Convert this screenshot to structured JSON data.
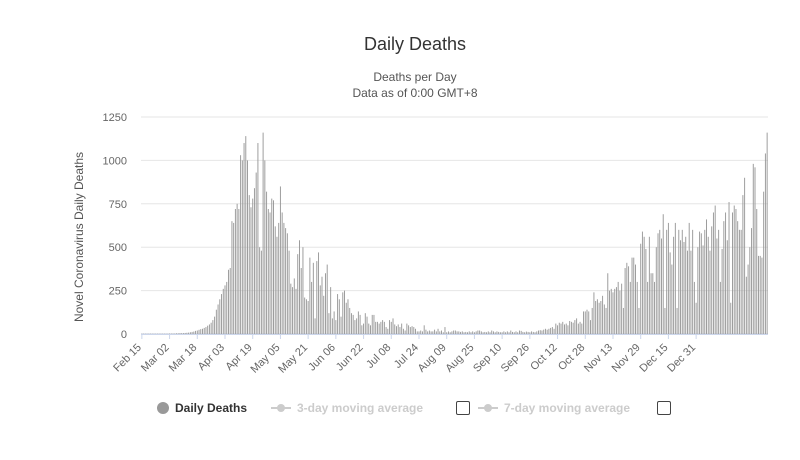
{
  "chart_data": {
    "type": "bar",
    "title": "Daily Deaths",
    "subtitle": [
      "Deaths per Day",
      "Data as of 0:00 GMT+8"
    ],
    "ylabel": "Novel Coronavirus Daily Deaths",
    "xlabel": "",
    "ylim": [
      0,
      1250
    ],
    "yticks": [
      0,
      250,
      500,
      750,
      1000,
      1250
    ],
    "grid": true,
    "x_start": "Feb 15",
    "x_end": "Jan 06",
    "xtick_labels": [
      "Feb 15",
      "Mar 02",
      "Mar 18",
      "Apr 03",
      "Apr 19",
      "May 05",
      "May 21",
      "Jun 06",
      "Jun 22",
      "Jul 08",
      "Jul 24",
      "Aug 09",
      "Aug 25",
      "Sep 10",
      "Sep 26",
      "Oct 12",
      "Oct 28",
      "Nov 13",
      "Nov 29",
      "Dec 15",
      "Dec 31"
    ],
    "color": "#999999",
    "series": [
      {
        "name": "Daily Deaths",
        "values": [
          2,
          2,
          2,
          2,
          2,
          2,
          2,
          2,
          2,
          2,
          2,
          2,
          2,
          2,
          2,
          2,
          3,
          3,
          3,
          3,
          4,
          4,
          5,
          5,
          5,
          6,
          7,
          8,
          10,
          12,
          14,
          18,
          20,
          24,
          28,
          30,
          35,
          40,
          48,
          55,
          65,
          80,
          100,
          140,
          170,
          200,
          230,
          260,
          280,
          300,
          370,
          380,
          650,
          640,
          720,
          750,
          720,
          1030,
          1000,
          1100,
          1140,
          1000,
          800,
          730,
          780,
          840,
          930,
          1100,
          500,
          480,
          1160,
          1000,
          820,
          720,
          700,
          780,
          770,
          620,
          560,
          640,
          850,
          700,
          640,
          610,
          580,
          480,
          290,
          270,
          320,
          260,
          460,
          540,
          380,
          500,
          210,
          200,
          190,
          440,
          300,
          410,
          90,
          420,
          470,
          280,
          330,
          220,
          350,
          400,
          120,
          270,
          90,
          130,
          80,
          230,
          200,
          100,
          240,
          250,
          180,
          200,
          150,
          120,
          110,
          80,
          90,
          130,
          110,
          50,
          60,
          120,
          100,
          60,
          50,
          110,
          110,
          70,
          70,
          60,
          70,
          80,
          70,
          40,
          30,
          80,
          70,
          90,
          55,
          45,
          55,
          40,
          60,
          30,
          20,
          60,
          50,
          40,
          45,
          40,
          30,
          15,
          15,
          20,
          15,
          50,
          25,
          15,
          20,
          15,
          15,
          25,
          15,
          30,
          15,
          20,
          10,
          40,
          10,
          15,
          10,
          15,
          20,
          20,
          15,
          15,
          12,
          15,
          10,
          12,
          10,
          15,
          10,
          15,
          10,
          15,
          20,
          20,
          15,
          10,
          12,
          10,
          15,
          10,
          20,
          15,
          10,
          15,
          12,
          10,
          10,
          15,
          10,
          15,
          10,
          20,
          12,
          10,
          15,
          10,
          20,
          18,
          12,
          10,
          14,
          12,
          10,
          15,
          12,
          10,
          15,
          20,
          22,
          20,
          25,
          30,
          25,
          30,
          35,
          40,
          30,
          60,
          50,
          65,
          60,
          70,
          55,
          60,
          50,
          75,
          70,
          65,
          80,
          90,
          60,
          70,
          60,
          130,
          130,
          140,
          130,
          80,
          150,
          240,
          190,
          200,
          180,
          190,
          220,
          170,
          150,
          350,
          250,
          260,
          240,
          260,
          270,
          300,
          250,
          290,
          150,
          380,
          410,
          390,
          300,
          440,
          440,
          400,
          300,
          150,
          520,
          590,
          560,
          490,
          300,
          560,
          350,
          350,
          300,
          500,
          580,
          600,
          550,
          690,
          150,
          600,
          640,
          470,
          400,
          560,
          640,
          150,
          600,
          540,
          600,
          530,
          560,
          480,
          640,
          480,
          600,
          300,
          180,
          500,
          590,
          580,
          510,
          600,
          660,
          560,
          480,
          620,
          700,
          740,
          550,
          600,
          300,
          490,
          650,
          700,
          540,
          760,
          180,
          700,
          740,
          720,
          650,
          600,
          600,
          800,
          900,
          330,
          400,
          500,
          610,
          980,
          960,
          720,
          450,
          450,
          440,
          820,
          1040,
          1160
        ]
      }
    ]
  },
  "legend": {
    "daily_deaths": "Daily Deaths",
    "ma3": "3-day moving average",
    "ma7": "7-day moving average"
  }
}
